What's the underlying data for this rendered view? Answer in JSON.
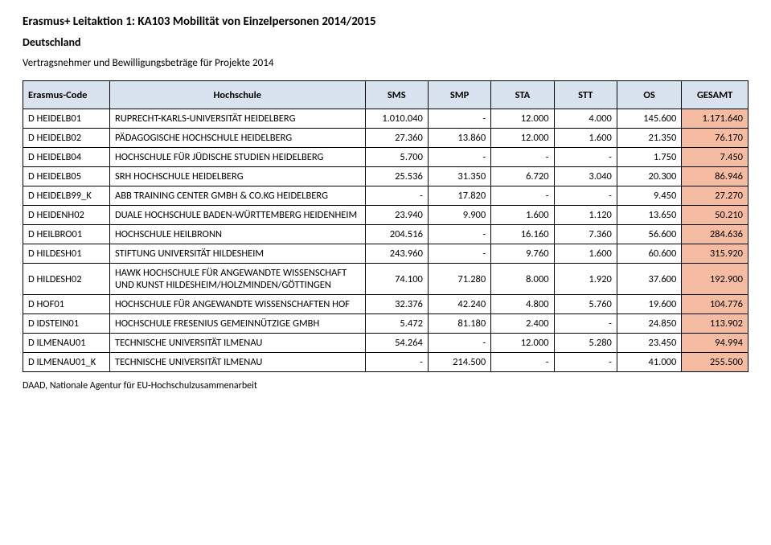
{
  "header": {
    "title": "Erasmus+ Leitaktion 1: KA103 Mobilität von Einzelpersonen 2014/2015",
    "subtitle": "Deutschland",
    "preface": "Vertragsnehmer und Bewilligungsbeträge für Projekte 2014"
  },
  "table": {
    "columns": [
      {
        "key": "code",
        "label": "Erasmus-Code",
        "align": "left"
      },
      {
        "key": "name",
        "label": "Hochschule",
        "align": "center"
      },
      {
        "key": "sms",
        "label": "SMS",
        "align": "center"
      },
      {
        "key": "smp",
        "label": "SMP",
        "align": "center"
      },
      {
        "key": "sta",
        "label": "STA",
        "align": "center"
      },
      {
        "key": "stt",
        "label": "STT",
        "align": "center"
      },
      {
        "key": "os",
        "label": "OS",
        "align": "center"
      },
      {
        "key": "gesamt",
        "label": "GESAMT",
        "align": "center"
      }
    ],
    "rows": [
      {
        "code": "D HEIDELB01",
        "name": "RUPRECHT-KARLS-UNIVERSITÄT HEIDELBERG",
        "sms": "1.010.040",
        "smp": "-",
        "sta": "12.000",
        "stt": "4.000",
        "os": "145.600",
        "gesamt": "1.171.640",
        "gesamt_bg": "#f5bca1"
      },
      {
        "code": "D HEIDELB02",
        "name": "PÄDAGOGISCHE HOCHSCHULE HEIDELBERG",
        "sms": "27.360",
        "smp": "13.860",
        "sta": "12.000",
        "stt": "1.600",
        "os": "21.350",
        "gesamt": "76.170",
        "gesamt_bg": "#f5bca1"
      },
      {
        "code": "D HEIDELB04",
        "name": "HOCHSCHULE FÜR JÜDISCHE STUDIEN HEIDELBERG",
        "sms": "5.700",
        "smp": "-",
        "sta": "-",
        "stt": "-",
        "os": "1.750",
        "gesamt": "7.450",
        "gesamt_bg": "#f5bca1"
      },
      {
        "code": "D HEIDELB05",
        "name": "SRH HOCHSCHULE HEIDELBERG",
        "sms": "25.536",
        "smp": "31.350",
        "sta": "6.720",
        "stt": "3.040",
        "os": "20.300",
        "gesamt": "86.946",
        "gesamt_bg": "#f5bca1"
      },
      {
        "code": "D HEIDELB99_K",
        "name": "ABB TRAINING CENTER GMBH & CO.KG HEIDELBERG",
        "sms": "-",
        "smp": "17.820",
        "sta": "-",
        "stt": "-",
        "os": "9.450",
        "gesamt": "27.270",
        "gesamt_bg": "#f5bca1"
      },
      {
        "code": "D HEIDENH02",
        "name": "DUALE HOCHSCHULE BADEN-WÜRTTEMBERG HEIDENHEIM",
        "sms": "23.940",
        "smp": "9.900",
        "sta": "1.600",
        "stt": "1.120",
        "os": "13.650",
        "gesamt": "50.210",
        "gesamt_bg": "#f5bca1"
      },
      {
        "code": "D HEILBRO01",
        "name": "HOCHSCHULE HEILBRONN",
        "sms": "204.516",
        "smp": "-",
        "sta": "16.160",
        "stt": "7.360",
        "os": "56.600",
        "gesamt": "284.636",
        "gesamt_bg": "#f5bca1"
      },
      {
        "code": "D HILDESH01",
        "name": "STIFTUNG UNIVERSITÄT HILDESHEIM",
        "sms": "243.960",
        "smp": "-",
        "sta": "9.760",
        "stt": "1.600",
        "os": "60.600",
        "gesamt": "315.920",
        "gesamt_bg": "#f5bca1"
      },
      {
        "code": "D HILDESH02",
        "name": "HAWK HOCHSCHULE FÜR ANGEWANDTE WISSENSCHAFT UND KUNST HILDESHEIM/HOLZMINDEN/GÖTTINGEN",
        "sms": "74.100",
        "smp": "71.280",
        "sta": "8.000",
        "stt": "1.920",
        "os": "37.600",
        "gesamt": "192.900",
        "gesamt_bg": "#f5bca1"
      },
      {
        "code": "D HOF01",
        "name": "HOCHSCHULE FÜR ANGEWANDTE WISSENSCHAFTEN HOF",
        "sms": "32.376",
        "smp": "42.240",
        "sta": "4.800",
        "stt": "5.760",
        "os": "19.600",
        "gesamt": "104.776",
        "gesamt_bg": "#f5bca1"
      },
      {
        "code": "D IDSTEIN01",
        "name": "HOCHSCHULE FRESENIUS GEMEINNÜTZIGE GMBH",
        "sms": "5.472",
        "smp": "81.180",
        "sta": "2.400",
        "stt": "-",
        "os": "24.850",
        "gesamt": "113.902",
        "gesamt_bg": "#f5bca1"
      },
      {
        "code": "D ILMENAU01",
        "name": "TECHNISCHE UNIVERSITÄT ILMENAU",
        "sms": "54.264",
        "smp": "-",
        "sta": "12.000",
        "stt": "5.280",
        "os": "23.450",
        "gesamt": "94.994",
        "gesamt_bg": "#f5bca1"
      },
      {
        "code": "D ILMENAU01_K",
        "name": "TECHNISCHE UNIVERSITÄT ILMENAU",
        "sms": "-",
        "smp": "214.500",
        "sta": "-",
        "stt": "-",
        "os": "41.000",
        "gesamt": "255.500",
        "gesamt_bg": "#f5bca1"
      }
    ],
    "header_bg": "#d8e3ef"
  },
  "footer": "DAAD, Nationale Agentur für EU-Hochschulzusammenarbeit"
}
